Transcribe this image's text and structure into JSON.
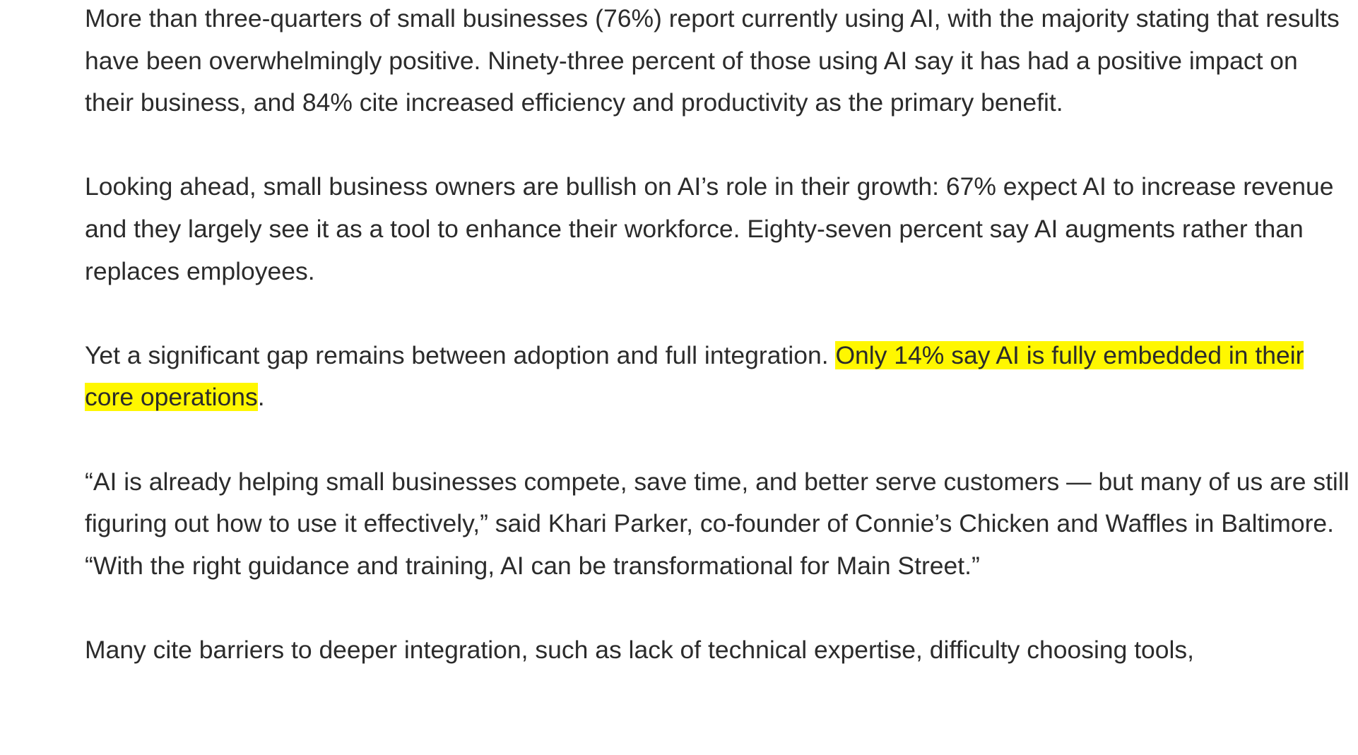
{
  "article": {
    "paragraphs": [
      "More than three-quarters of small businesses (76%) report currently using AI, with the majority stating that results have been overwhelmingly positive. Ninety-three percent of those using AI say it has had a positive impact on their business, and 84% cite increased efficiency and productivity as the primary benefit.",
      "Looking ahead, small business owners are bullish on AI’s role in their growth: 67% expect AI to increase revenue and they largely see it as a tool to enhance their workforce. Eighty-seven percent say AI augments rather than replaces employees.",
      [
        "Yet a significant gap remains between adoption and full integration. ",
        "Only 14% say AI is fully embedded in their core operations",
        "."
      ],
      "“AI is already helping small businesses compete, save time, and better serve customers — but many of us are still figuring out how to use it effectively,” said Khari Parker, co-founder of Connie’s Chicken and Waffles in Baltimore. “With the right guidance and training, AI can be transformational for Main Street.”",
      "Many cite barriers to deeper integration, such as lack of technical expertise, difficulty choosing tools,"
    ]
  }
}
